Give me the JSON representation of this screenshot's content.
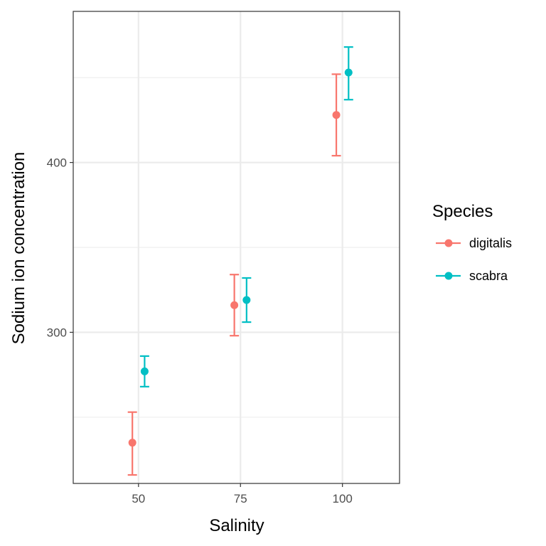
{
  "chart_data": {
    "type": "scatter",
    "title": "",
    "xlabel": "Salinity",
    "ylabel": "Sodium ion concentration",
    "x_ticks": [
      "50",
      "75",
      "100"
    ],
    "y_ticks": [
      "300",
      "400"
    ],
    "xlim": [
      34,
      114
    ],
    "ylim": [
      211,
      489
    ],
    "grid": true,
    "error_bars": true,
    "legend": {
      "title": "Species",
      "position": "right"
    },
    "series": [
      {
        "name": "digitalis",
        "color": "#F8766D",
        "points": [
          {
            "x": 48.5,
            "y": 235,
            "ymin": 216,
            "ymax": 253
          },
          {
            "x": 73.5,
            "y": 316,
            "ymin": 298,
            "ymax": 334
          },
          {
            "x": 98.5,
            "y": 428,
            "ymin": 404,
            "ymax": 452
          }
        ]
      },
      {
        "name": "scabra",
        "color": "#00BFC4",
        "points": [
          {
            "x": 51.5,
            "y": 277,
            "ymin": 268,
            "ymax": 286
          },
          {
            "x": 76.5,
            "y": 319,
            "ymin": 306,
            "ymax": 332
          },
          {
            "x": 101.5,
            "y": 453,
            "ymin": 437,
            "ymax": 468
          }
        ]
      }
    ]
  }
}
